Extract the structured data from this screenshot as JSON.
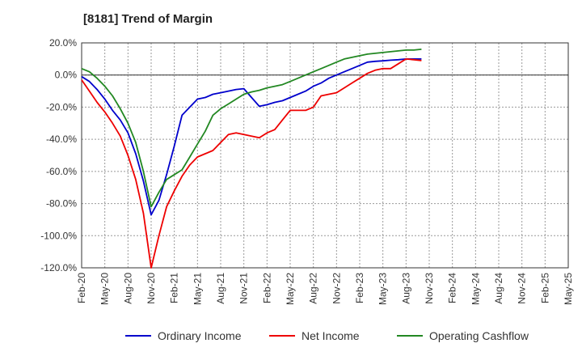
{
  "chart_data": {
    "type": "line",
    "title": "[8181]  Trend of Margin",
    "xlabel": "",
    "ylabel": "",
    "ylim": [
      -120,
      20
    ],
    "y_ticks": [
      20,
      0,
      -20,
      -40,
      -60,
      -80,
      -100,
      -120
    ],
    "y_tick_labels": [
      "20.0%",
      "0.0%",
      "-20.0%",
      "-40.0%",
      "-60.0%",
      "-80.0%",
      "-100.0%",
      "-120.0%"
    ],
    "x_tick_labels": [
      "Feb-20",
      "May-20",
      "Aug-20",
      "Nov-20",
      "Feb-21",
      "May-21",
      "Aug-21",
      "Nov-21",
      "Feb-22",
      "May-22",
      "Aug-22",
      "Nov-22",
      "Feb-23",
      "May-23",
      "Aug-23",
      "Nov-23",
      "Feb-24",
      "May-24",
      "Aug-24",
      "Nov-24",
      "Feb-25",
      "May-25"
    ],
    "grid": true,
    "legend_position": "bottom",
    "series": [
      {
        "name": "Ordinary Income",
        "color": "#0000cc",
        "points": [
          [
            0,
            -1
          ],
          [
            1,
            -4
          ],
          [
            2,
            -9
          ],
          [
            3,
            -15
          ],
          [
            4,
            -22
          ],
          [
            5,
            -28
          ],
          [
            6,
            -36
          ],
          [
            7,
            -49
          ],
          [
            8,
            -66
          ],
          [
            9,
            -87
          ],
          [
            10,
            -78
          ],
          [
            11,
            -62
          ],
          [
            12,
            -44
          ],
          [
            13,
            -25
          ],
          [
            14,
            -20
          ],
          [
            15,
            -15
          ],
          [
            16,
            -14
          ],
          [
            17,
            -12
          ],
          [
            18,
            -11
          ],
          [
            19,
            -10
          ],
          [
            20,
            -9
          ],
          [
            21,
            -8.5
          ],
          [
            22,
            -14
          ],
          [
            23,
            -19.5
          ],
          [
            24,
            -18.5
          ],
          [
            25,
            -17
          ],
          [
            26,
            -16
          ],
          [
            27,
            -14
          ],
          [
            28,
            -12
          ],
          [
            29,
            -10
          ],
          [
            30,
            -7
          ],
          [
            31,
            -5
          ],
          [
            32,
            -2
          ],
          [
            33,
            0
          ],
          [
            34,
            2
          ],
          [
            35,
            4
          ],
          [
            36,
            6
          ],
          [
            37,
            8
          ],
          [
            38,
            8.5
          ],
          [
            39,
            8.8
          ],
          [
            40,
            9.2
          ],
          [
            41,
            9.5
          ],
          [
            42,
            10
          ],
          [
            43,
            10
          ],
          [
            44,
            10
          ]
        ]
      },
      {
        "name": "Net Income",
        "color": "#ee0000",
        "points": [
          [
            0,
            -3
          ],
          [
            1,
            -10
          ],
          [
            2,
            -17
          ],
          [
            3,
            -23
          ],
          [
            4,
            -30
          ],
          [
            5,
            -38
          ],
          [
            6,
            -50
          ],
          [
            7,
            -65
          ],
          [
            8,
            -86
          ],
          [
            9,
            -120
          ],
          [
            10,
            -100
          ],
          [
            11,
            -82
          ],
          [
            12,
            -72
          ],
          [
            13,
            -63
          ],
          [
            14,
            -56
          ],
          [
            15,
            -51
          ],
          [
            16,
            -49
          ],
          [
            17,
            -47
          ],
          [
            18,
            -42
          ],
          [
            19,
            -37
          ],
          [
            20,
            -36
          ],
          [
            21,
            -37
          ],
          [
            22,
            -38
          ],
          [
            23,
            -39
          ],
          [
            24,
            -36
          ],
          [
            25,
            -34
          ],
          [
            26,
            -28
          ],
          [
            27,
            -22
          ],
          [
            28,
            -22
          ],
          [
            29,
            -22
          ],
          [
            30,
            -20
          ],
          [
            31,
            -13
          ],
          [
            32,
            -12
          ],
          [
            33,
            -11
          ],
          [
            34,
            -8
          ],
          [
            35,
            -5
          ],
          [
            36,
            -2
          ],
          [
            37,
            1
          ],
          [
            38,
            3
          ],
          [
            39,
            4
          ],
          [
            40,
            4
          ],
          [
            41,
            7
          ],
          [
            42,
            10
          ],
          [
            43,
            9.5
          ],
          [
            44,
            9
          ]
        ]
      },
      {
        "name": "Operating Cashflow",
        "color": "#228822",
        "points": [
          [
            0,
            4
          ],
          [
            1,
            2
          ],
          [
            2,
            -2
          ],
          [
            3,
            -7
          ],
          [
            4,
            -13
          ],
          [
            5,
            -21
          ],
          [
            6,
            -30
          ],
          [
            7,
            -42
          ],
          [
            8,
            -60
          ],
          [
            9,
            -82
          ],
          [
            10,
            -73
          ],
          [
            11,
            -65
          ],
          [
            12,
            -62
          ],
          [
            13,
            -59
          ],
          [
            14,
            -51
          ],
          [
            15,
            -43
          ],
          [
            16,
            -35
          ],
          [
            17,
            -25
          ],
          [
            18,
            -21
          ],
          [
            19,
            -18
          ],
          [
            20,
            -15
          ],
          [
            21,
            -12
          ],
          [
            22,
            -10.5
          ],
          [
            23,
            -9.5
          ],
          [
            24,
            -8
          ],
          [
            25,
            -7
          ],
          [
            26,
            -6
          ],
          [
            27,
            -4
          ],
          [
            28,
            -2
          ],
          [
            29,
            0
          ],
          [
            30,
            2
          ],
          [
            31,
            4
          ],
          [
            32,
            6
          ],
          [
            33,
            8
          ],
          [
            34,
            10
          ],
          [
            35,
            11
          ],
          [
            36,
            12
          ],
          [
            37,
            13
          ],
          [
            38,
            13.5
          ],
          [
            39,
            14
          ],
          [
            40,
            14.5
          ],
          [
            41,
            15
          ],
          [
            42,
            15.5
          ],
          [
            43,
            15.5
          ],
          [
            44,
            16
          ]
        ]
      }
    ]
  }
}
